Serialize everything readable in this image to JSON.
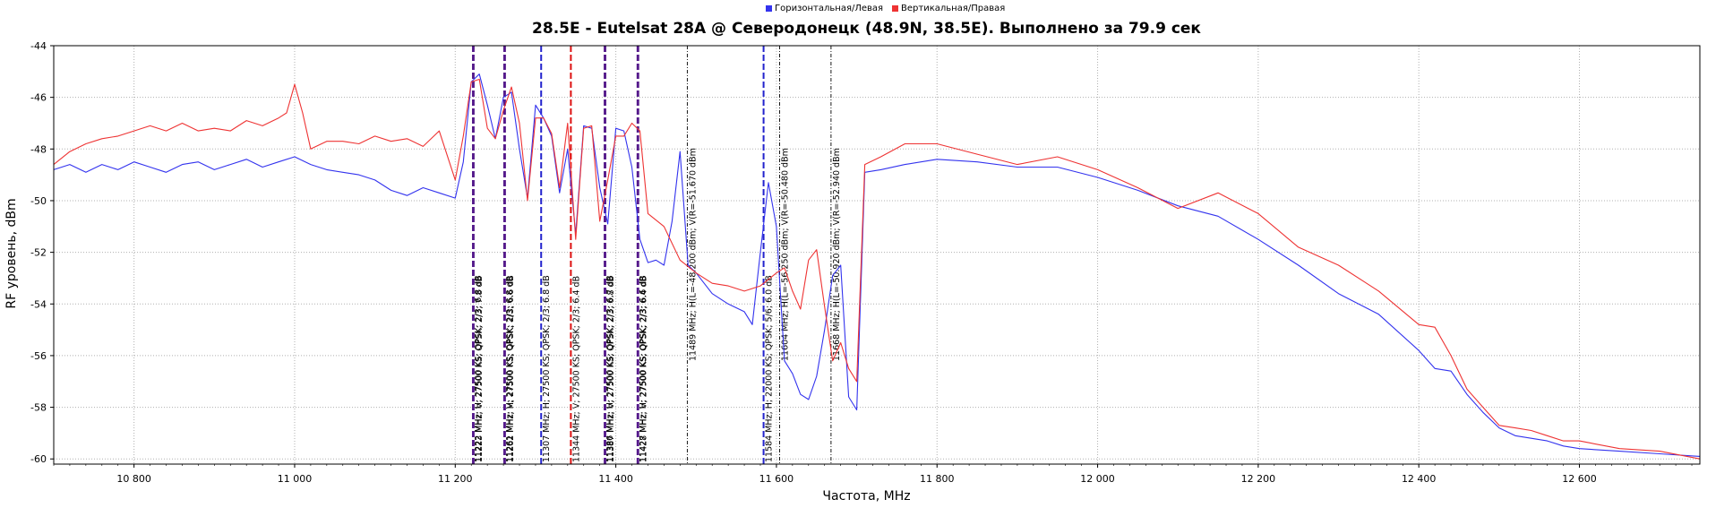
{
  "colors": {
    "horizontal": "#3333ee",
    "vertical": "#ee3333",
    "grid": "#b0b0b0",
    "marker_h": "#2222cc",
    "marker_v": "#dd1111",
    "marker_hv": "#551a8b",
    "marker_info": "#000000"
  },
  "chart_data": {
    "type": "line",
    "title": "28.5E - Eutelsat 28A @ Северодонецк (48.9N, 38.5E). Выполнено за 79.9 сек",
    "xlabel": "Частота, MHz",
    "ylabel": "RF уровень, dBm",
    "xlim": [
      10700,
      12750
    ],
    "ylim": [
      -60.2,
      -44
    ],
    "grid": true,
    "legend_position": "top-center",
    "legend": [
      {
        "name": "Горизонтальная/Левая",
        "color": "#3333ee"
      },
      {
        "name": "Вертикальная/Правая",
        "color": "#ee3333"
      }
    ],
    "x_ticks": [
      {
        "v": 10800,
        "label": "10 800"
      },
      {
        "v": 11000,
        "label": "11 000"
      },
      {
        "v": 11200,
        "label": "11 200"
      },
      {
        "v": 11400,
        "label": "11 400"
      },
      {
        "v": 11600,
        "label": "11 600"
      },
      {
        "v": 11800,
        "label": "11 800"
      },
      {
        "v": 12000,
        "label": "12 000"
      },
      {
        "v": 12200,
        "label": "12 200"
      },
      {
        "v": 12400,
        "label": "12 400"
      },
      {
        "v": 12600,
        "label": "12 600"
      }
    ],
    "y_ticks": [
      {
        "v": -44,
        "label": "-44"
      },
      {
        "v": -46,
        "label": "-46"
      },
      {
        "v": -48,
        "label": "-48"
      },
      {
        "v": -50,
        "label": "-50"
      },
      {
        "v": -52,
        "label": "-52"
      },
      {
        "v": -54,
        "label": "-54"
      },
      {
        "v": -56,
        "label": "-56"
      },
      {
        "v": -58,
        "label": "-58"
      },
      {
        "v": -60,
        "label": "-60"
      }
    ],
    "series": [
      {
        "name": "Горизонтальная/Левая",
        "color": "#3333ee",
        "x": [
          10700,
          10720,
          10740,
          10760,
          10780,
          10800,
          10820,
          10840,
          10860,
          10880,
          10900,
          10920,
          10940,
          10960,
          10980,
          11000,
          11020,
          11040,
          11060,
          11080,
          11100,
          11120,
          11140,
          11160,
          11180,
          11200,
          11210,
          11220,
          11230,
          11240,
          11250,
          11260,
          11270,
          11280,
          11290,
          11300,
          11310,
          11320,
          11330,
          11340,
          11350,
          11360,
          11370,
          11380,
          11390,
          11400,
          11410,
          11420,
          11430,
          11440,
          11450,
          11460,
          11470,
          11480,
          11490,
          11500,
          11520,
          11540,
          11560,
          11570,
          11580,
          11590,
          11600,
          11610,
          11620,
          11630,
          11640,
          11650,
          11660,
          11670,
          11680,
          11690,
          11700,
          11710,
          11730,
          11760,
          11800,
          11850,
          11900,
          11950,
          12000,
          12050,
          12100,
          12150,
          12200,
          12250,
          12300,
          12350,
          12400,
          12420,
          12440,
          12460,
          12480,
          12500,
          12520,
          12540,
          12560,
          12580,
          12600,
          12650,
          12700,
          12750
        ],
        "y": [
          -48.8,
          -48.6,
          -48.9,
          -48.6,
          -48.8,
          -48.5,
          -48.7,
          -48.9,
          -48.6,
          -48.5,
          -48.8,
          -48.6,
          -48.4,
          -48.7,
          -48.5,
          -48.3,
          -48.6,
          -48.8,
          -48.9,
          -49.0,
          -49.2,
          -49.6,
          -49.8,
          -49.5,
          -49.7,
          -49.9,
          -48.5,
          -45.4,
          -45.1,
          -46.3,
          -47.6,
          -46.0,
          -45.8,
          -48.0,
          -49.9,
          -46.3,
          -46.8,
          -47.5,
          -49.7,
          -48.0,
          -51.3,
          -47.1,
          -47.2,
          -49.5,
          -50.9,
          -47.2,
          -47.3,
          -48.7,
          -51.5,
          -52.4,
          -52.3,
          -52.5,
          -50.8,
          -48.1,
          -52.5,
          -52.8,
          -53.6,
          -54.0,
          -54.3,
          -54.8,
          -52.0,
          -49.3,
          -51.0,
          -56.2,
          -56.7,
          -57.5,
          -57.7,
          -56.8,
          -55.0,
          -52.9,
          -52.5,
          -57.6,
          -58.1,
          -48.9,
          -48.8,
          -48.6,
          -48.4,
          -48.5,
          -48.7,
          -48.7,
          -49.1,
          -49.6,
          -50.2,
          -50.6,
          -51.5,
          -52.5,
          -53.6,
          -54.4,
          -55.8,
          -56.5,
          -56.6,
          -57.5,
          -58.2,
          -58.8,
          -59.1,
          -59.2,
          -59.3,
          -59.5,
          -59.6,
          -59.7,
          -59.8,
          -59.9
        ]
      },
      {
        "name": "Вертикальная/Правая",
        "color": "#ee3333",
        "x": [
          10700,
          10720,
          10740,
          10760,
          10780,
          10800,
          10820,
          10840,
          10860,
          10880,
          10900,
          10920,
          10940,
          10960,
          10980,
          10990,
          11000,
          11010,
          11020,
          11040,
          11060,
          11080,
          11100,
          11120,
          11140,
          11160,
          11180,
          11200,
          11210,
          11220,
          11230,
          11240,
          11250,
          11260,
          11270,
          11280,
          11290,
          11300,
          11310,
          11320,
          11330,
          11340,
          11350,
          11360,
          11370,
          11380,
          11390,
          11400,
          11410,
          11420,
          11430,
          11440,
          11460,
          11480,
          11500,
          11520,
          11540,
          11560,
          11580,
          11600,
          11610,
          11620,
          11630,
          11640,
          11650,
          11660,
          11670,
          11680,
          11690,
          11700,
          11710,
          11730,
          11760,
          11800,
          11850,
          11900,
          11950,
          12000,
          12050,
          12100,
          12150,
          12200,
          12250,
          12300,
          12350,
          12400,
          12420,
          12440,
          12460,
          12480,
          12500,
          12520,
          12540,
          12560,
          12580,
          12600,
          12650,
          12700,
          12750
        ],
        "y": [
          -48.6,
          -48.1,
          -47.8,
          -47.6,
          -47.5,
          -47.3,
          -47.1,
          -47.3,
          -47.0,
          -47.3,
          -47.2,
          -47.3,
          -46.9,
          -47.1,
          -46.8,
          -46.6,
          -45.5,
          -46.6,
          -48.0,
          -47.7,
          -47.7,
          -47.8,
          -47.5,
          -47.7,
          -47.6,
          -47.9,
          -47.3,
          -49.2,
          -47.5,
          -45.4,
          -45.3,
          -47.2,
          -47.6,
          -46.5,
          -45.6,
          -47.0,
          -50.0,
          -46.8,
          -46.8,
          -47.4,
          -49.5,
          -47.0,
          -51.5,
          -47.2,
          -47.1,
          -50.8,
          -49.2,
          -47.5,
          -47.5,
          -47.0,
          -47.3,
          -50.5,
          -51.0,
          -52.3,
          -52.8,
          -53.2,
          -53.3,
          -53.5,
          -53.3,
          -52.8,
          -52.6,
          -53.5,
          -54.2,
          -52.3,
          -51.9,
          -54.1,
          -56.2,
          -55.5,
          -56.5,
          -57.0,
          -48.6,
          -48.3,
          -47.8,
          -47.8,
          -48.2,
          -48.6,
          -48.3,
          -48.8,
          -49.5,
          -50.3,
          -49.7,
          -50.5,
          -51.8,
          -52.5,
          -53.5,
          -54.8,
          -54.9,
          -56.0,
          -57.3,
          -58.0,
          -58.7,
          -58.8,
          -58.9,
          -59.1,
          -59.3,
          -59.3,
          -59.6,
          -59.7,
          -60.0
        ]
      }
    ],
    "markers": [
      {
        "x": 11222,
        "pol": "HV",
        "label": "11222 MHz; H; 27500 KS; QPSK; 2/3; 6.8 dB"
      },
      {
        "x": 11223,
        "pol": "HV",
        "label": "11223 MHz; V; 27500 KS; QPSK; 2/3; 7.8 dB"
      },
      {
        "x": 11261,
        "pol": "HV",
        "label": "11261 MHz; V; 27500 KS; QPSK; 2/3; 6.8 dB"
      },
      {
        "x": 11262,
        "pol": "HV",
        "label": "11262 MHz; H; 27500 KS; QPSK; 2/3; 6.6 dB"
      },
      {
        "x": 11307,
        "pol": "H",
        "label": "11307 MHz; H; 27500 KS; QPSK; 2/3; 6.8 dB"
      },
      {
        "x": 11344,
        "pol": "V",
        "label": "11344 MHz; V; 27500 KS; QPSK; 2/3; 6.4 dB"
      },
      {
        "x": 11386,
        "pol": "HV",
        "label": "11386 MHz; H; 27500 KS; QPSK; 2/3; 6.7 dB"
      },
      {
        "x": 11387,
        "pol": "HV",
        "label": "11387 MHz; V; 27500 KS; QPSK; 2/3; 6.8 dB"
      },
      {
        "x": 11427,
        "pol": "HV",
        "label": "11427 MHz; H; 27500 KS; QPSK; 2/3; 6.6 dB"
      },
      {
        "x": 11428,
        "pol": "HV",
        "label": "11428 MHz; V; 27500 KS; QPSK; 2/3; 6.4 dB"
      },
      {
        "x": 11489,
        "pol": "I",
        "label": "11489 MHz;  H(L=-48.200 dBm;  V(R=-51.670 dBm"
      },
      {
        "x": 11584,
        "pol": "H",
        "label": "11584 MHz; H; 22000 KS; QPSK; 5/6; 6.0 dB"
      },
      {
        "x": 11604,
        "pol": "I",
        "label": "11604 MHz;  H(L=-56.250 dBm;  V(R=-50.480 dBm"
      },
      {
        "x": 11668,
        "pol": "I",
        "label": "11668 MHz;  H(L=-50.920 dBm;  V(R=-52.940 dBm"
      }
    ]
  }
}
